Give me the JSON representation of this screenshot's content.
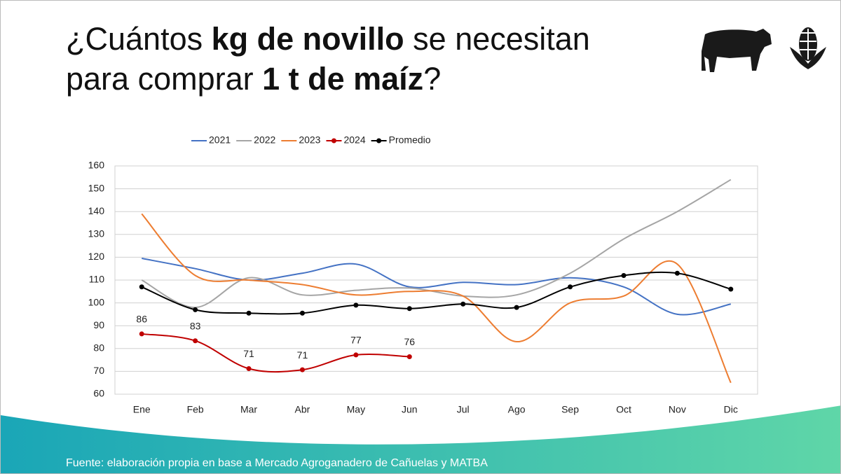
{
  "title_lines": [
    [
      {
        "text": "¿Cuántos ",
        "bold": false
      },
      {
        "text": "kg de novillo",
        "bold": true
      },
      {
        "text": " se necesitan",
        "bold": false
      }
    ],
    [
      {
        "text": "para comprar ",
        "bold": false
      },
      {
        "text": "1 t de maíz",
        "bold": true
      },
      {
        "text": "?",
        "bold": false
      }
    ]
  ],
  "chart_data": {
    "type": "line",
    "categories": [
      "Ene",
      "Feb",
      "Mar",
      "Abr",
      "May",
      "Jun",
      "Jul",
      "Ago",
      "Sep",
      "Oct",
      "Nov",
      "Dic"
    ],
    "series": [
      {
        "name": "2021",
        "color": "#4472c4",
        "marker": false,
        "values": [
          119.5,
          115,
          110,
          113,
          117,
          107,
          109,
          108,
          111,
          107,
          95,
          99.5
        ]
      },
      {
        "name": "2022",
        "color": "#a5a5a5",
        "marker": false,
        "values": [
          110,
          98,
          111,
          103.5,
          105.5,
          106.5,
          103,
          103.5,
          113,
          128,
          140,
          154
        ]
      },
      {
        "name": "2023",
        "color": "#ed7d31",
        "marker": false,
        "values": [
          139,
          112,
          110,
          108,
          103.5,
          105,
          103,
          83,
          100,
          103,
          117,
          65
        ]
      },
      {
        "name": "2024",
        "color": "#c00000",
        "marker": true,
        "values": [
          86.4,
          83.4,
          71.2,
          70.7,
          77.2,
          76.4,
          null,
          null,
          null,
          null,
          null,
          null
        ],
        "value_labels": [
          "86",
          "83",
          "71",
          "71",
          "77",
          "76",
          null,
          null,
          null,
          null,
          null,
          null
        ]
      },
      {
        "name": "Promedio",
        "color": "#000000",
        "marker": true,
        "values": [
          107,
          97,
          95.5,
          95.5,
          99,
          97.5,
          99.5,
          98,
          107,
          112,
          113,
          106
        ]
      }
    ],
    "ylim": [
      60,
      160
    ],
    "yticks": [
      60,
      70,
      80,
      90,
      100,
      110,
      120,
      130,
      140,
      150,
      160
    ],
    "grid": true,
    "legend": "top"
  },
  "source": "Fuente: elaboración propia en base a Mercado Agroganadero de Cañuelas y MATBA"
}
